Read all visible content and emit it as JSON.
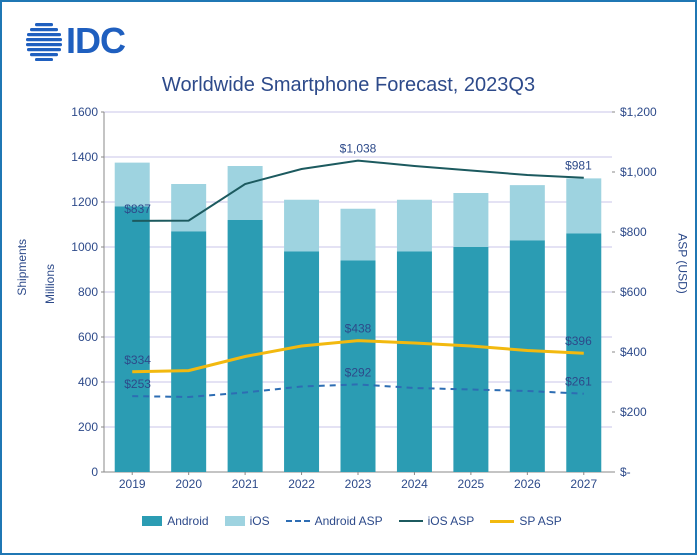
{
  "logo_text": "IDC",
  "chart": {
    "type": "stacked-bar-with-lines",
    "title": "Worldwide Smartphone Forecast, 2023Q3",
    "title_fontsize": 20,
    "title_color": "#2d4a8a",
    "background_color": "#ffffff",
    "border_color": "#1f77b4",
    "categories": [
      "2019",
      "2020",
      "2021",
      "2022",
      "2023",
      "2024",
      "2025",
      "2026",
      "2027"
    ],
    "left_axis": {
      "label_outer": "Shipments",
      "label_inner": "Millions",
      "min": 0,
      "max": 1600,
      "tick_step": 200,
      "tick_color": "#2d4a8a",
      "grid_color": "#b8b0e0"
    },
    "right_axis": {
      "label": "ASP (USD)",
      "min": 0,
      "max": 1200,
      "tick_step": 200,
      "tick_prefix": "$",
      "tick_format_thousands": true,
      "tick_color": "#2d4a8a"
    },
    "series_bars": [
      {
        "name": "Android",
        "color": "#2b9cb3",
        "values": [
          1180,
          1070,
          1120,
          980,
          940,
          980,
          1000,
          1030,
          1060
        ]
      },
      {
        "name": "iOS",
        "color": "#9ed3e0",
        "values": [
          195,
          210,
          240,
          230,
          230,
          230,
          240,
          245,
          245
        ]
      }
    ],
    "series_lines": [
      {
        "name": "Android ASP",
        "color": "#2d6db3",
        "dash": "6,5",
        "width": 2,
        "axis": "right",
        "values": [
          253,
          250,
          265,
          285,
          292,
          280,
          275,
          270,
          261
        ],
        "labels": {
          "0": "$253",
          "4": "$292",
          "8": "$261"
        }
      },
      {
        "name": "iOS ASP",
        "color": "#1c5a5f",
        "dash": null,
        "width": 2,
        "axis": "right",
        "values": [
          837,
          838,
          960,
          1010,
          1038,
          1020,
          1005,
          990,
          981
        ],
        "labels": {
          "0": "$837",
          "4": "$1,038",
          "8": "$981"
        }
      },
      {
        "name": "SP ASP",
        "color": "#f2b90f",
        "dash": null,
        "width": 3,
        "axis": "right",
        "values": [
          334,
          338,
          385,
          420,
          438,
          430,
          420,
          405,
          396
        ],
        "labels": {
          "0": "$334",
          "4": "$438",
          "8": "$396"
        }
      }
    ],
    "bar_width_ratio": 0.62,
    "legend": [
      "Android",
      "iOS",
      "Android ASP",
      "iOS ASP",
      "SP ASP"
    ],
    "axis_font_size": 12,
    "axis_font_color": "#2d4a8a"
  }
}
